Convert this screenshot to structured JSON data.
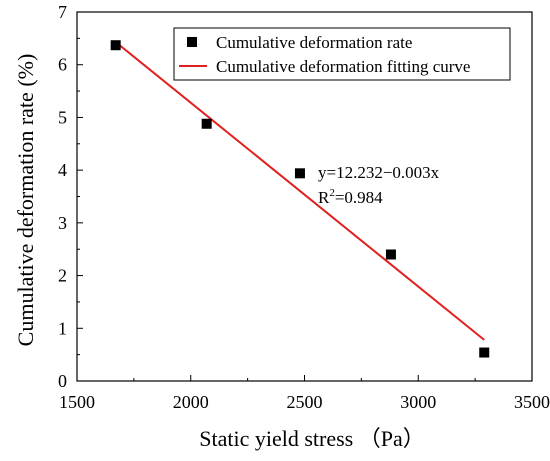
{
  "chart_data": {
    "type": "scatter",
    "xlabel": "Static yield stress （Pa）",
    "ylabel": "Cumulative deformation rate (%)",
    "xlim": [
      1500,
      3500
    ],
    "ylim": [
      0,
      7
    ],
    "x_ticks": [
      1500,
      2000,
      2500,
      3000,
      3500
    ],
    "y_ticks": [
      0,
      1,
      2,
      3,
      4,
      5,
      6,
      7
    ],
    "grid": false,
    "legend_position": "top-right",
    "series": [
      {
        "name": "Cumulative deformation rate",
        "kind": "scatter",
        "marker": "square",
        "color": "#000000",
        "points": [
          {
            "x": 1670,
            "y": 6.37
          },
          {
            "x": 2070,
            "y": 4.88
          },
          {
            "x": 2480,
            "y": 3.94
          },
          {
            "x": 2880,
            "y": 2.4
          },
          {
            "x": 3290,
            "y": 0.54
          }
        ]
      },
      {
        "name": "Cumulative deformation fitting curve",
        "kind": "line",
        "color": "#e02020",
        "points": [
          {
            "x": 1670,
            "y": 6.43
          },
          {
            "x": 3290,
            "y": 0.78
          }
        ]
      }
    ],
    "annotation": {
      "equation": "y=12.232−0.003x",
      "r2_prefix": "R",
      "r2_sup": "2",
      "r2_value": "=0.984"
    }
  }
}
